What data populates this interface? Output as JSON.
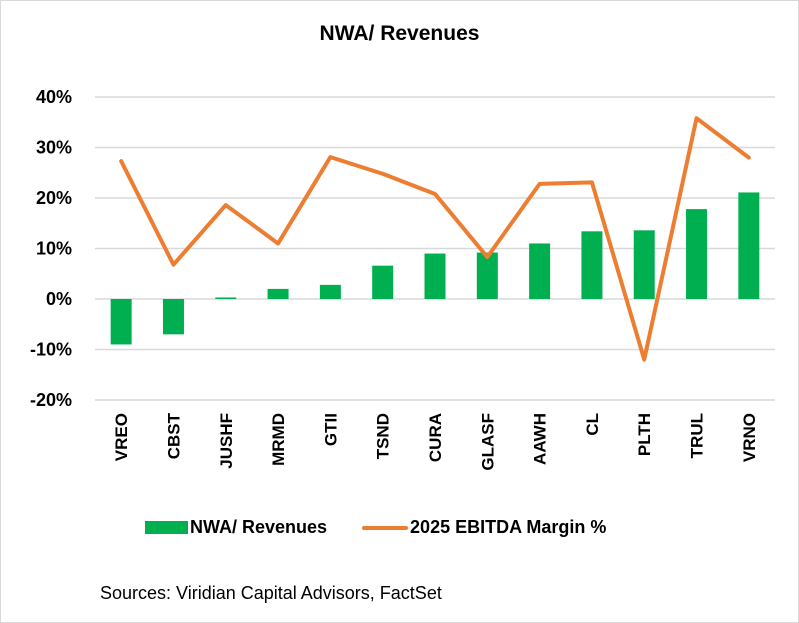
{
  "chart_data": {
    "type": "bar",
    "title": "NWA/ Revenues",
    "xlabel": "",
    "ylabel": "",
    "ylim": [
      -0.2,
      0.4
    ],
    "yticks": [
      0.4,
      0.3,
      0.2,
      0.1,
      0.0,
      -0.1,
      -0.2
    ],
    "ytick_labels": [
      "40%",
      "30%",
      "20%",
      "10%",
      "0%",
      "-10%",
      "-20%"
    ],
    "grid": true,
    "legend_position": "bottom",
    "categories": [
      "VREO",
      "CBST",
      "JUSHF",
      "MRMD",
      "GTII",
      "TSND",
      "CURA",
      "GLASF",
      "AAWH",
      "CL",
      "PLTH",
      "TRUL",
      "VRNO"
    ],
    "series": [
      {
        "name": "NWA/ Revenues",
        "type": "bar",
        "color": "#00b050",
        "values": [
          -0.09,
          -0.07,
          0.003,
          0.02,
          0.028,
          0.066,
          0.09,
          0.092,
          0.11,
          0.134,
          0.136,
          0.178,
          0.211
        ]
      },
      {
        "name": "2025 EBITDA Margin %",
        "type": "line",
        "color": "#ed7d31",
        "values": [
          0.273,
          0.068,
          0.186,
          0.11,
          0.281,
          0.248,
          0.208,
          0.083,
          0.228,
          0.231,
          -0.12,
          0.358,
          0.28
        ]
      }
    ]
  },
  "source": "Sources: Viridian Capital Advisors, FactSet"
}
